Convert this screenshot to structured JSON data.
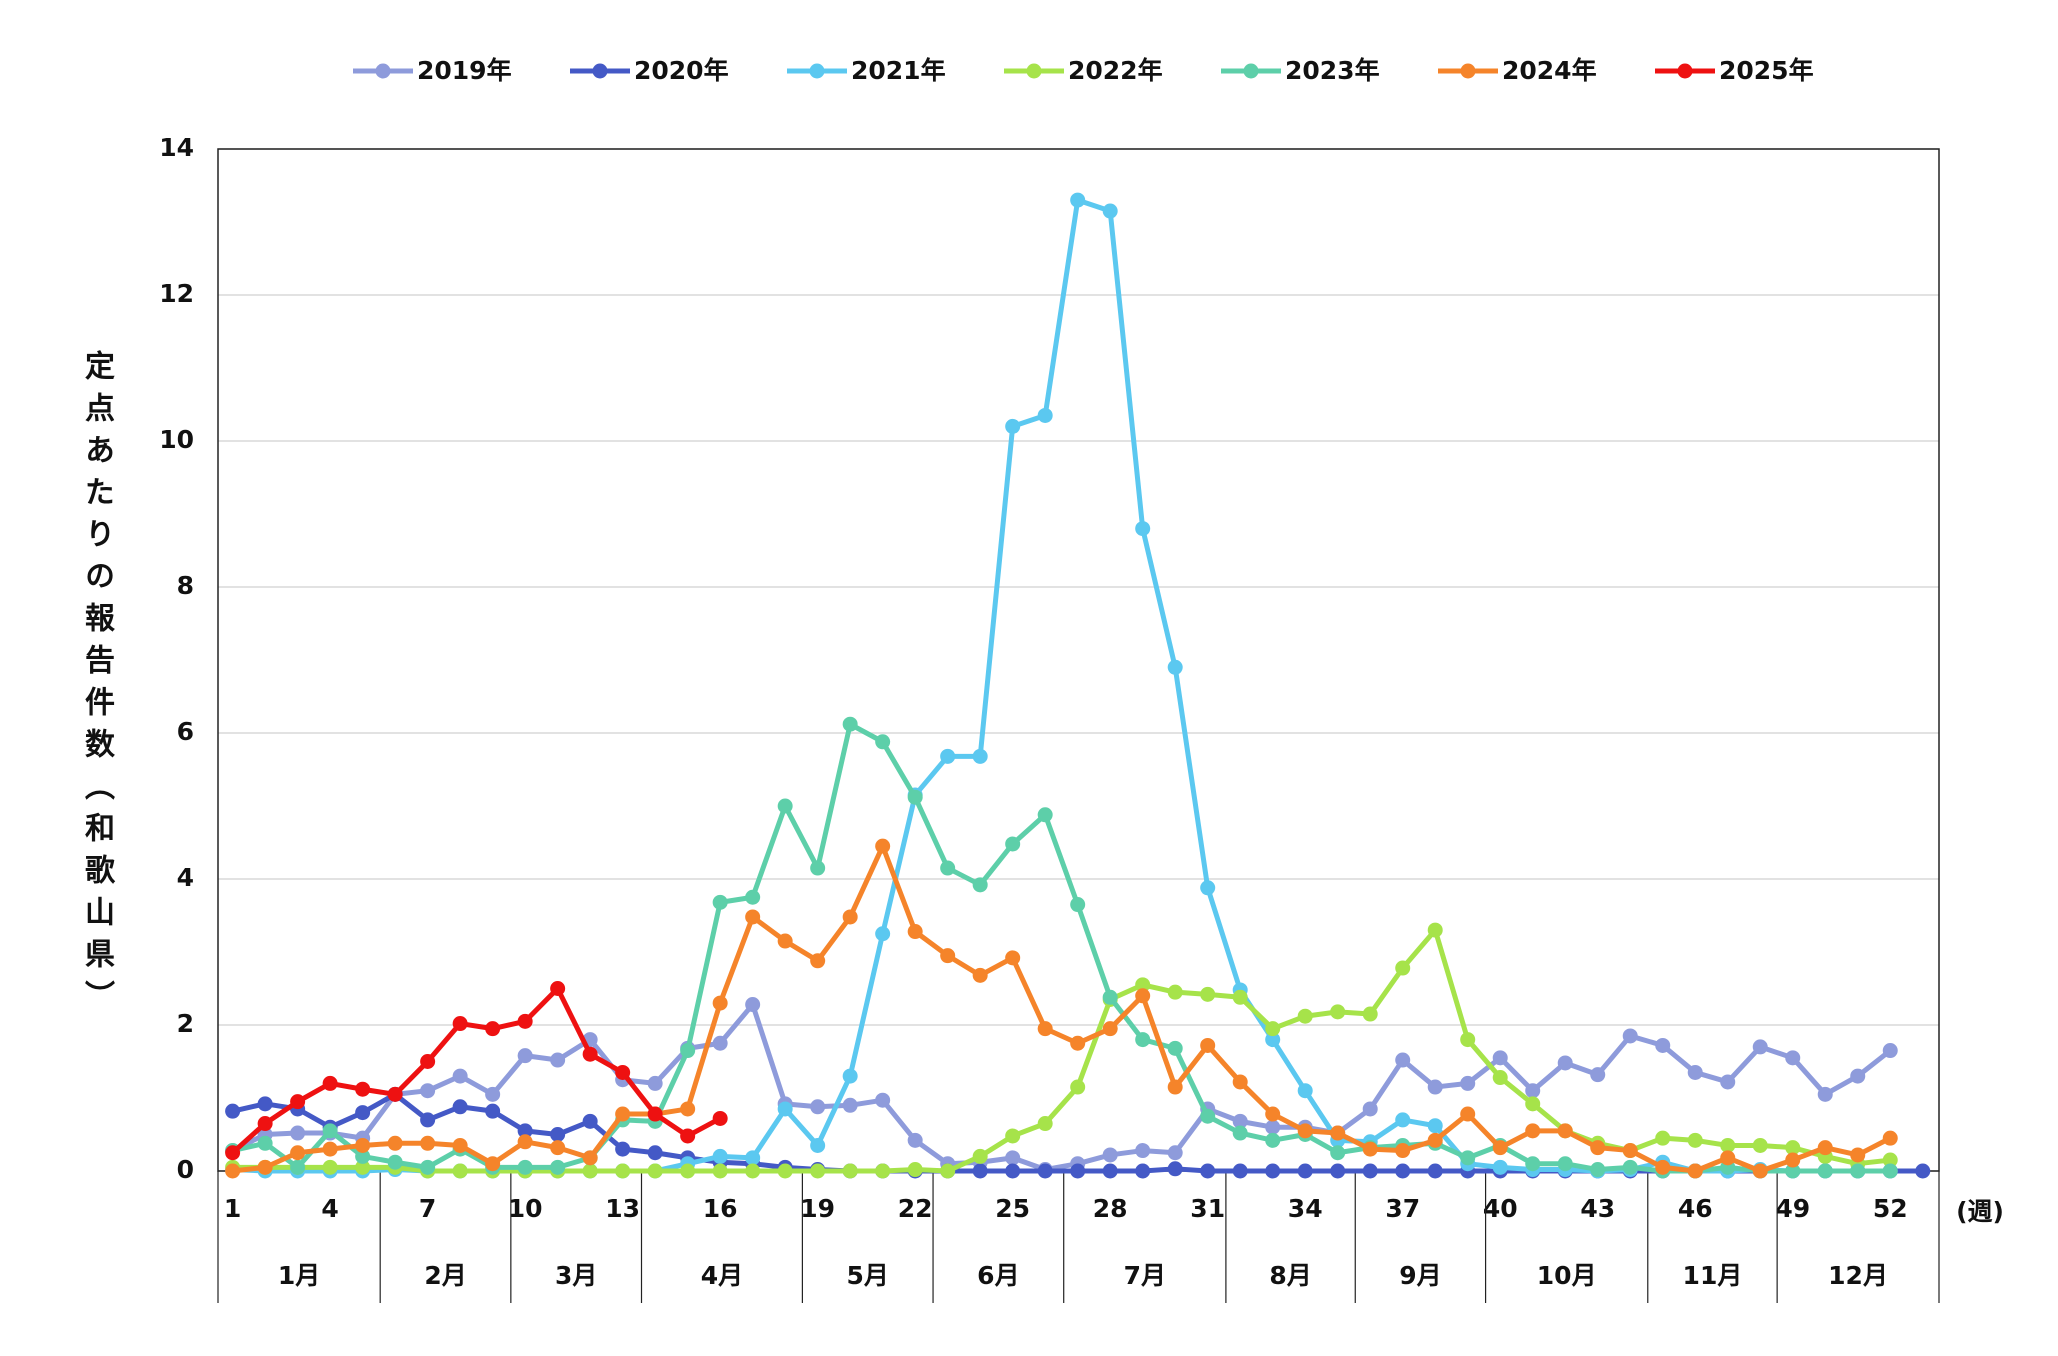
{
  "chart_data": {
    "type": "line",
    "ylabel": "定点あたりの報告件数（和歌山県）",
    "xlabel": "(週)",
    "x": [
      1,
      2,
      3,
      4,
      5,
      6,
      7,
      8,
      9,
      10,
      11,
      12,
      13,
      14,
      15,
      16,
      17,
      18,
      19,
      20,
      21,
      22,
      23,
      24,
      25,
      26,
      27,
      28,
      29,
      30,
      31,
      32,
      33,
      34,
      35,
      36,
      37,
      38,
      39,
      40,
      41,
      42,
      43,
      44,
      45,
      46,
      47,
      48,
      49,
      50,
      51,
      52,
      53
    ],
    "xlim": [
      0.55,
      53.5
    ],
    "xticks": [
      1,
      4,
      7,
      10,
      13,
      16,
      19,
      22,
      25,
      28,
      31,
      34,
      37,
      40,
      43,
      46,
      49,
      52
    ],
    "months": [
      "1月",
      "2月",
      "3月",
      "4月",
      "5月",
      "6月",
      "7月",
      "8月",
      "9月",
      "10月",
      "11月",
      "12月"
    ],
    "ylim": [
      0,
      14
    ],
    "yticks": [
      0,
      2,
      4,
      6,
      8,
      10,
      12,
      14
    ],
    "grid": true,
    "series": [
      {
        "name": "2019年",
        "color": "#8e9bdb",
        "values": [
          0.28,
          0.5,
          0.52,
          0.52,
          0.45,
          1.05,
          1.1,
          1.3,
          1.05,
          1.58,
          1.52,
          1.8,
          1.25,
          1.2,
          1.68,
          1.75,
          2.28,
          0.92,
          0.88,
          0.9,
          0.97,
          0.42,
          0.1,
          0.12,
          0.18,
          0.02,
          0.1,
          0.22,
          0.28,
          0.25,
          0.85,
          0.68,
          0.6,
          0.6,
          0.52,
          0.85,
          1.52,
          1.15,
          1.2,
          1.55,
          1.1,
          1.48,
          1.32,
          1.85,
          1.72,
          1.35,
          1.22,
          1.7,
          1.55,
          1.05,
          1.3,
          1.65,
          null
        ]
      },
      {
        "name": "2020年",
        "color": "#4459c6",
        "values": [
          0.82,
          0.92,
          0.85,
          0.6,
          0.8,
          1.05,
          0.7,
          0.88,
          0.82,
          0.55,
          0.5,
          0.68,
          0.3,
          0.25,
          0.18,
          0.12,
          0.1,
          0.05,
          0.02,
          0,
          0,
          0,
          0,
          0,
          0,
          0,
          0,
          0,
          0,
          0.03,
          0,
          0,
          0,
          0,
          0,
          0,
          0,
          0,
          0,
          0,
          0,
          0,
          0,
          0,
          0,
          0,
          0,
          0,
          0,
          0,
          0,
          0,
          0
        ]
      },
      {
        "name": "2021年",
        "color": "#5bc8f0",
        "values": [
          0.02,
          0,
          0,
          0,
          0,
          0.02,
          0,
          0,
          0,
          0,
          0,
          0,
          0,
          0,
          0.1,
          0.2,
          0.18,
          0.85,
          0.35,
          1.3,
          3.25,
          5.15,
          5.68,
          5.68,
          10.2,
          10.35,
          13.3,
          13.15,
          8.8,
          6.9,
          3.88,
          2.48,
          1.8,
          1.1,
          0.42,
          0.4,
          0.7,
          0.62,
          0.1,
          0.05,
          0.02,
          0.02,
          0,
          0.02,
          0.12,
          0,
          0,
          0.02,
          0,
          0,
          0,
          0,
          null
        ]
      },
      {
        "name": "2022年",
        "color": "#a6e34a",
        "values": [
          0.05,
          0.05,
          0.05,
          0.05,
          0.05,
          0.05,
          0,
          0,
          0,
          0,
          0,
          0,
          0,
          0,
          0,
          0,
          0,
          0,
          0,
          0,
          0,
          0.02,
          0,
          0.2,
          0.48,
          0.65,
          1.15,
          2.35,
          2.55,
          2.45,
          2.42,
          2.38,
          1.95,
          2.12,
          2.18,
          2.15,
          2.78,
          3.3,
          1.8,
          1.28,
          0.92,
          0.55,
          0.38,
          0.28,
          0.45,
          0.42,
          0.35,
          0.35,
          0.32,
          0.2,
          0.1,
          0.15,
          null
        ]
      },
      {
        "name": "2023年",
        "color": "#5dcfa9",
        "values": [
          0.28,
          0.38,
          0.05,
          0.55,
          0.2,
          0.12,
          0.05,
          0.3,
          0.05,
          0.05,
          0.05,
          0.18,
          0.7,
          0.68,
          1.65,
          3.68,
          3.75,
          5.0,
          4.15,
          6.12,
          5.88,
          5.12,
          4.15,
          3.92,
          4.48,
          4.88,
          3.65,
          2.38,
          1.8,
          1.68,
          0.75,
          0.52,
          0.42,
          0.5,
          0.25,
          0.32,
          0.35,
          0.38,
          0.18,
          0.35,
          0.1,
          0.1,
          0.02,
          0.05,
          0,
          0,
          0.05,
          0,
          0,
          0,
          0,
          0,
          null
        ]
      },
      {
        "name": "2024年",
        "color": "#f5842a",
        "values": [
          0,
          0.05,
          0.25,
          0.3,
          0.35,
          0.38,
          0.38,
          0.35,
          0.1,
          0.4,
          0.32,
          0.18,
          0.78,
          0.78,
          0.85,
          2.3,
          3.48,
          3.15,
          2.88,
          3.48,
          4.45,
          3.28,
          2.95,
          2.68,
          2.92,
          1.95,
          1.75,
          1.95,
          2.4,
          1.15,
          1.72,
          1.22,
          0.78,
          0.55,
          0.52,
          0.3,
          0.28,
          0.42,
          0.78,
          0.32,
          0.55,
          0.55,
          0.32,
          0.28,
          0.05,
          0,
          0.18,
          0,
          0.15,
          0.32,
          0.22,
          0.45,
          null
        ]
      },
      {
        "name": "2025年",
        "color": "#ee1111",
        "values": [
          0.25,
          0.65,
          0.95,
          1.2,
          1.12,
          1.05,
          1.5,
          2.02,
          1.95,
          2.05,
          2.5,
          1.6,
          1.35,
          0.78,
          0.48,
          0.72,
          null,
          null,
          null,
          null,
          null,
          null,
          null,
          null,
          null,
          null,
          null,
          null,
          null,
          null,
          null,
          null,
          null,
          null,
          null,
          null,
          null,
          null,
          null,
          null,
          null,
          null,
          null,
          null,
          null,
          null,
          null,
          null,
          null,
          null,
          null,
          null,
          null
        ]
      }
    ]
  }
}
